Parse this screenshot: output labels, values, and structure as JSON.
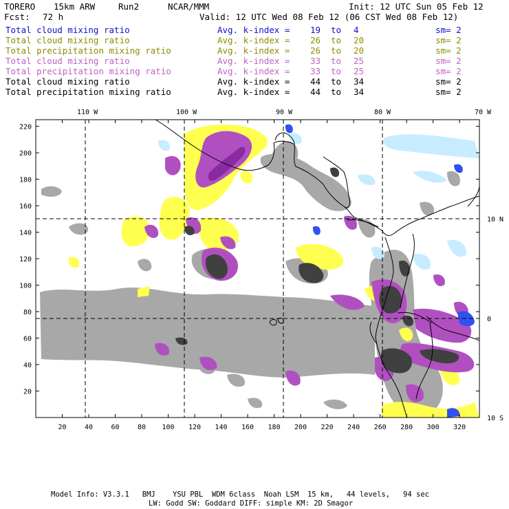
{
  "header": {
    "model": "TORERO",
    "resolution": "15km ARW",
    "run": "Run2",
    "org": "NCAR/MMM",
    "init": "Init: 12 UTC Sun 05 Feb 12",
    "fcst_label": "Fcst:",
    "fcst_value": "72 h",
    "valid": "Valid: 12 UTC Wed 08 Feb 12 (06 CST Wed 08 Feb 12)"
  },
  "legend": [
    {
      "field": "Total cloud mixing ratio",
      "avg": "Avg. k-index =",
      "k1": "19",
      "to": "to",
      "k2": "4",
      "sm": "sm= 2",
      "color": "#1010c8"
    },
    {
      "field": "Total cloud mixing ratio",
      "avg": "Avg. k-index =",
      "k1": "26",
      "to": "to",
      "k2": "20",
      "sm": "sm= 2",
      "color": "#8c8c00"
    },
    {
      "field": "Total precipitation mixing ratio",
      "avg": "Avg. k-index =",
      "k1": "26",
      "to": "to",
      "k2": "20",
      "sm": "sm= 2",
      "color": "#8c8c00"
    },
    {
      "field": "Total cloud mixing ratio",
      "avg": "Avg. k-index =",
      "k1": "33",
      "to": "to",
      "k2": "25",
      "sm": "sm= 2",
      "color": "#c060c0"
    },
    {
      "field": "Total precipitation mixing ratio",
      "avg": "Avg. k-index =",
      "k1": "33",
      "to": "to",
      "k2": "25",
      "sm": "sm= 2",
      "color": "#c060c0"
    },
    {
      "field": "Total cloud mixing ratio",
      "avg": "Avg. k-index =",
      "k1": "44",
      "to": "to",
      "k2": "34",
      "sm": "sm= 2",
      "color": "#000000"
    },
    {
      "field": "Total precipitation mixing ratio",
      "avg": "Avg. k-index =",
      "k1": "44",
      "to": "to",
      "k2": "34",
      "sm": "sm= 2",
      "color": "#000000"
    }
  ],
  "map": {
    "lon_labels": [
      "110 W",
      "100 W",
      "90 W",
      "80 W",
      "70 W"
    ],
    "lat_labels": [
      "10 N",
      "0",
      "10 S"
    ],
    "x_ticks": [
      "20",
      "40",
      "60",
      "80",
      "100",
      "120",
      "140",
      "160",
      "180",
      "200",
      "220",
      "240",
      "260",
      "280",
      "300",
      "320"
    ],
    "y_ticks": [
      "20",
      "40",
      "60",
      "80",
      "100",
      "120",
      "140",
      "160",
      "180",
      "200",
      "220"
    ],
    "x_range": [
      0,
      335
    ],
    "y_range": [
      0,
      225
    ],
    "colors": {
      "grey": "#a8a8a8",
      "dark": "#404040",
      "yellow": "#ffff50",
      "purple": "#b050c0",
      "dark_purple": "#8a2aa0",
      "light_blue": "#c8ecff",
      "blue": "#3050f0"
    }
  },
  "footer": {
    "line1": "Model Info: V3.3.1   BMJ    YSU PBL  WDM 6class  Noah LSM  15 km,   44 levels,   94 sec",
    "line2": "LW: Godd SW: Goddard DIFF: simple KM: 2D Smagor"
  }
}
